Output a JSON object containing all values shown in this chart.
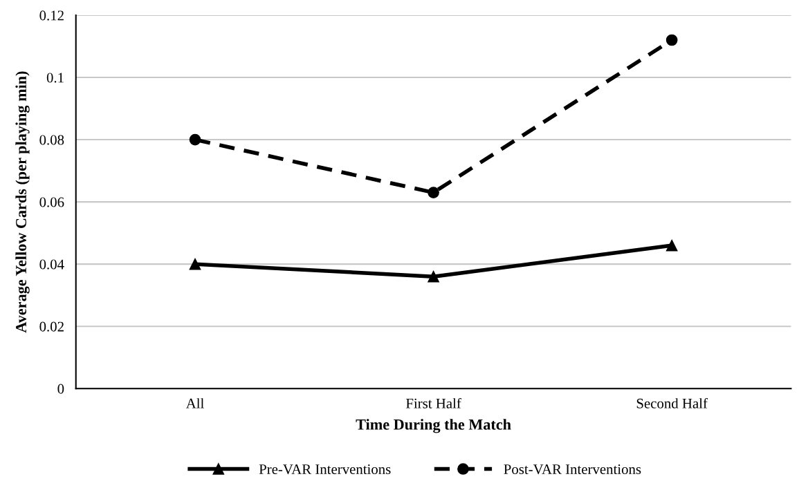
{
  "chart_data": {
    "type": "line",
    "xlabel": "Time During the Match",
    "ylabel": "Average Yellow Cards (per playing min)",
    "categories": [
      "All",
      "First Half",
      "Second Half"
    ],
    "series": [
      {
        "name": "Pre-VAR Interventions",
        "color": "#000000",
        "marker": "triangle",
        "line_style": "solid",
        "values": [
          0.04,
          0.036,
          0.046
        ]
      },
      {
        "name": "Post-VAR Interventions",
        "color": "#000000",
        "marker": "circle",
        "line_style": "dashed",
        "values": [
          0.08,
          0.063,
          0.112
        ]
      }
    ],
    "ylim": [
      0,
      0.12
    ],
    "yticks": [
      0,
      0.02,
      0.04,
      0.06,
      0.08,
      0.1,
      0.12
    ],
    "grid": "y",
    "legend": "bottom"
  }
}
